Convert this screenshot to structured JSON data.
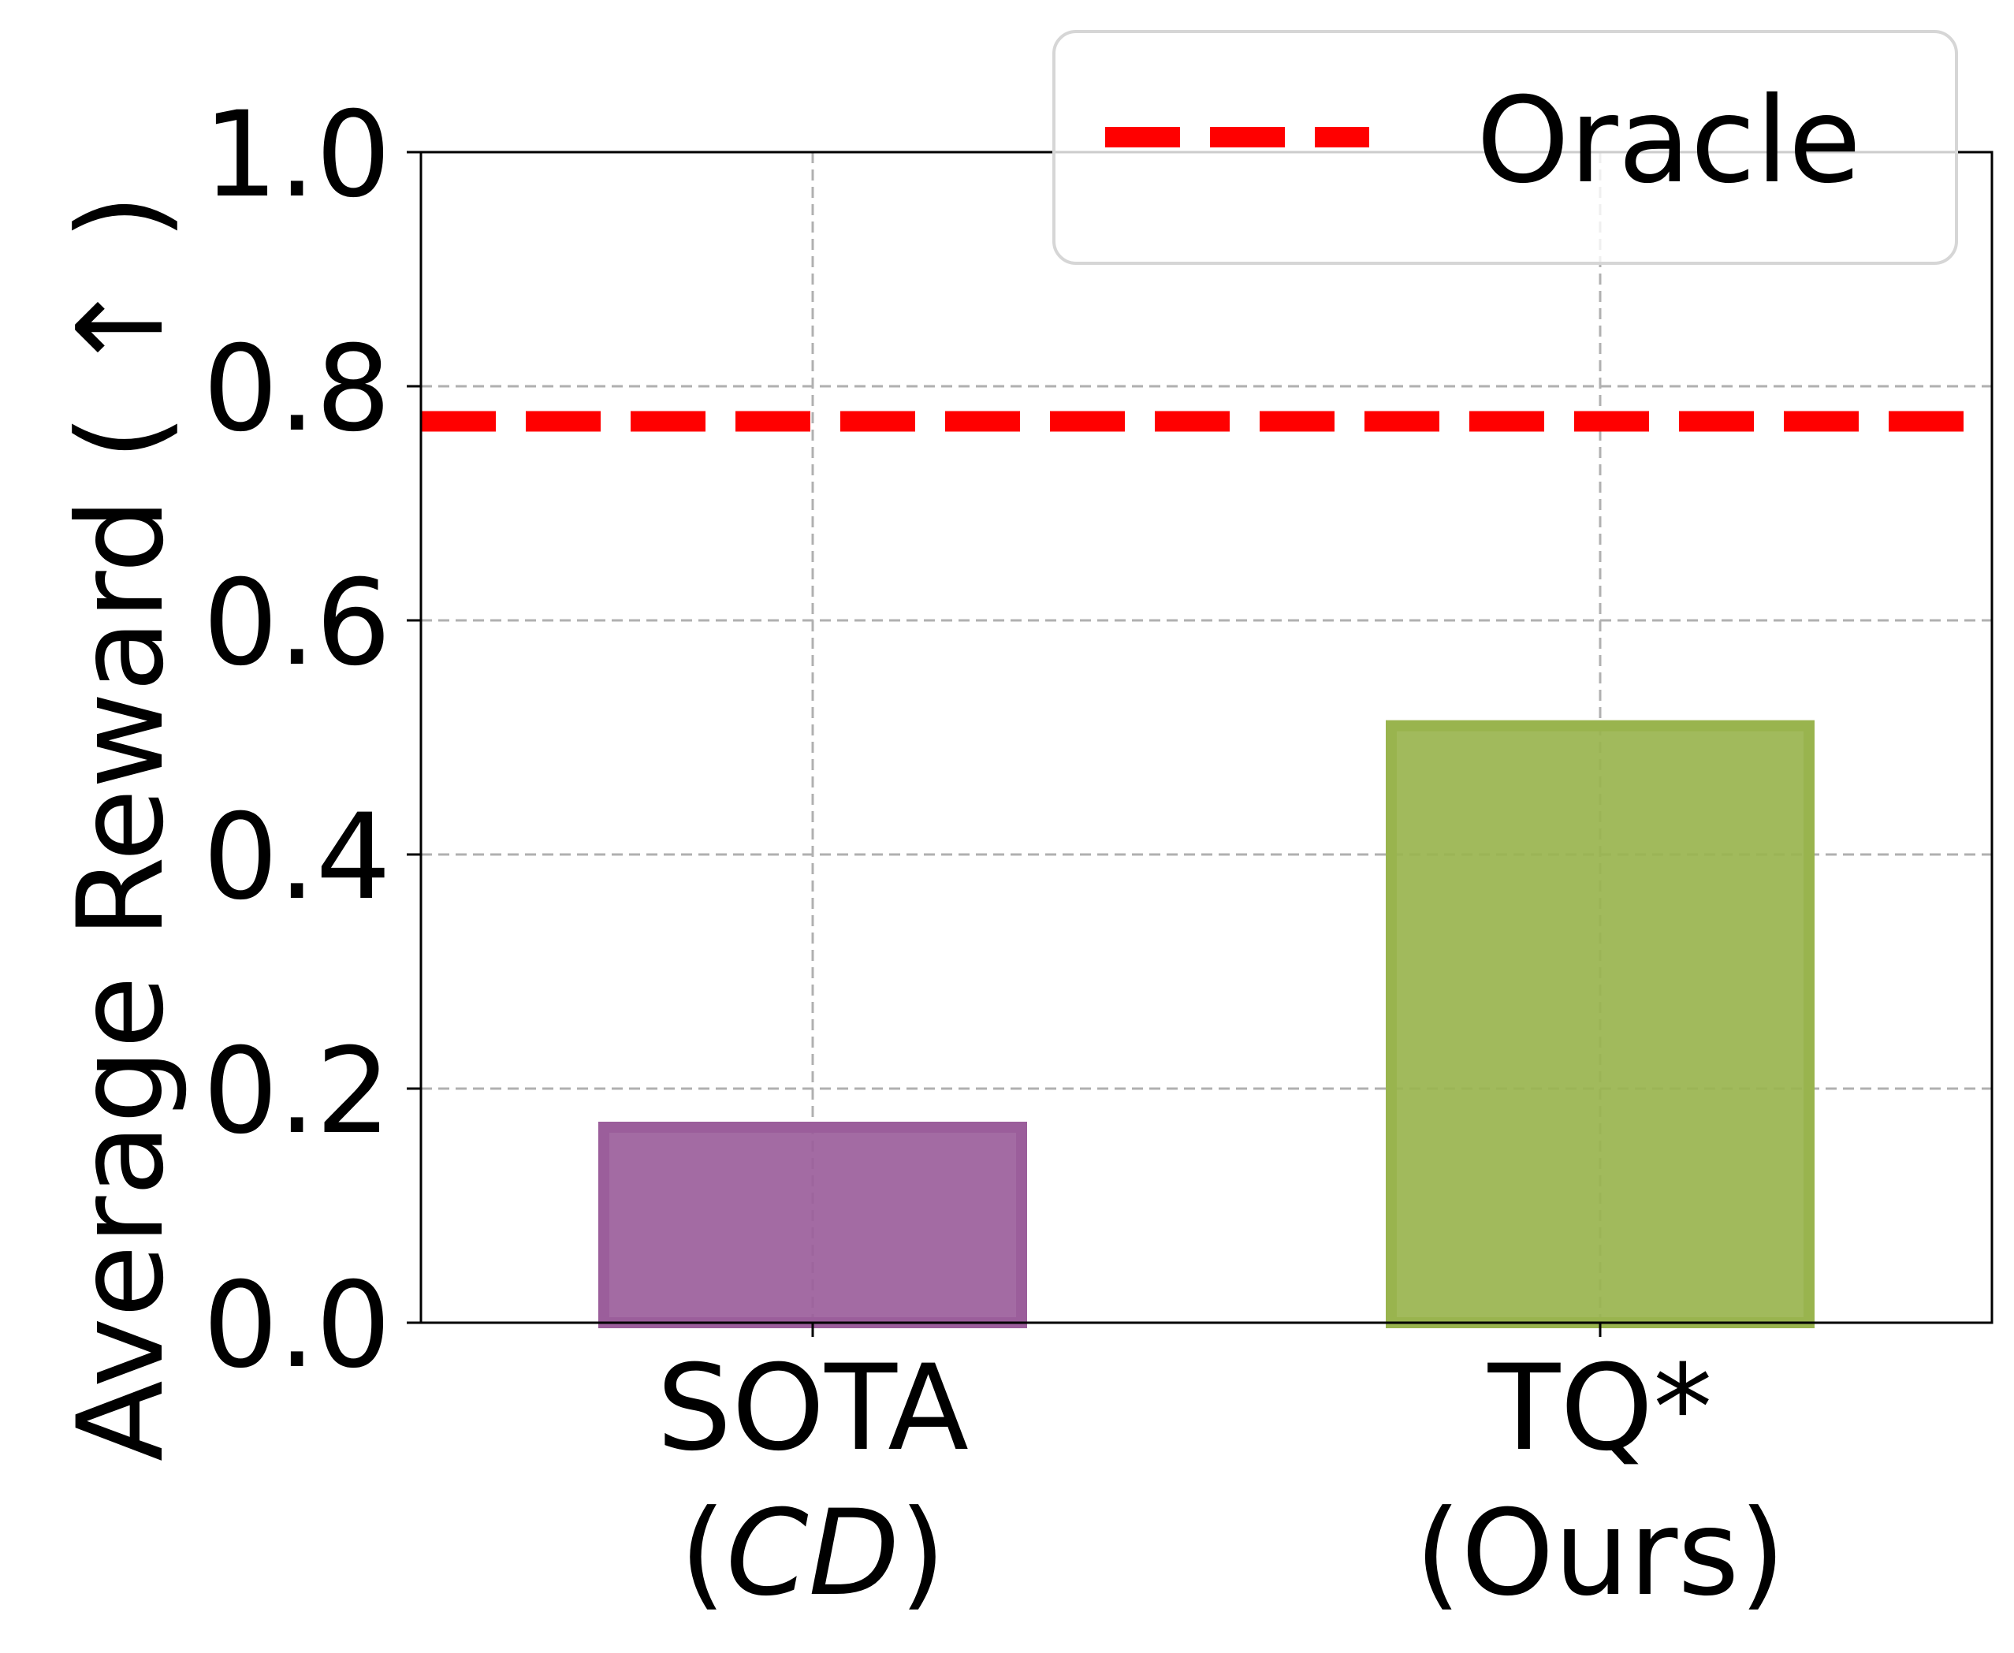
{
  "chart_data": {
    "type": "bar",
    "categories": [
      {
        "line1": "SOTA",
        "line2_prefix": "(",
        "line2_italic": "CD",
        "line2_suffix": ")"
      },
      {
        "line1": "TQ*",
        "line2_prefix": "",
        "line2_italic": "",
        "line2_suffix": "(Ours)"
      }
    ],
    "values": [
      0.167,
      0.51
    ],
    "bar_colors": [
      "#9b5e9b",
      "#99b44e"
    ],
    "ylabel": "Average Reward ( ↑ )",
    "ylim": [
      0.0,
      1.0
    ],
    "yticks": [
      "0.0",
      "0.2",
      "0.4",
      "0.6",
      "0.8",
      "1.0"
    ],
    "reference_line": {
      "name": "Oracle",
      "value": 0.77,
      "color": "#ff0000",
      "style": "dashed"
    },
    "legend": {
      "entries": [
        "Oracle"
      ],
      "placement": "top-right"
    },
    "grid": true
  }
}
